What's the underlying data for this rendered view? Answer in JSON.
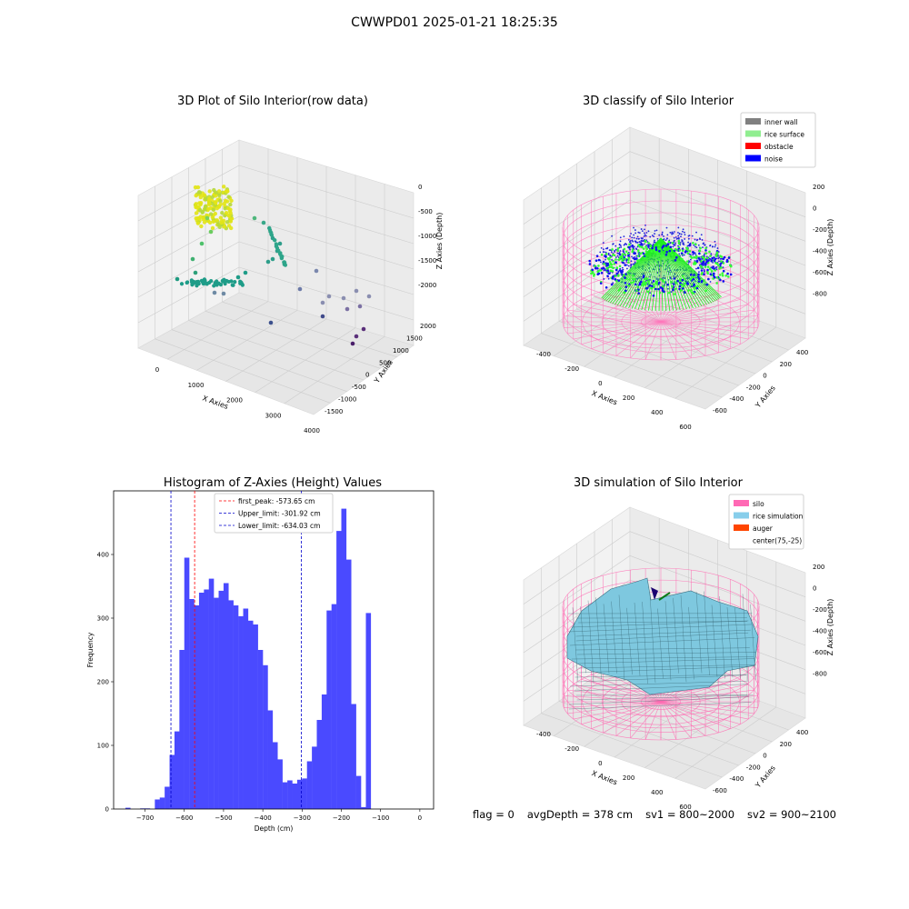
{
  "suptitle": "CWWPD01 2025-01-21 18:25:35",
  "panels": {
    "raw": {
      "title": "3D Plot of Silo Interior(row data)",
      "xlabel": "X Axies",
      "ylabel": "Y Axies",
      "zlabel": "Z Axies (Depth)",
      "xticks": [
        "0",
        "1000",
        "2000",
        "3000",
        "4000"
      ],
      "yticks": [
        "2000",
        "1500",
        "1000",
        "500",
        "0",
        "-500",
        "-1000",
        "-1500"
      ],
      "zticks": [
        "0",
        "-500",
        "-1000",
        "-1500",
        "-2000"
      ]
    },
    "classify": {
      "title": "3D classify of Silo Interior",
      "xlabel": "X Axies",
      "ylabel": "Y Axies",
      "zlabel": "Z Axies (Depth)",
      "xticks": [
        "-400",
        "-200",
        "0",
        "200",
        "400",
        "600"
      ],
      "yticks": [
        "400",
        "200",
        "0",
        "-200",
        "-400",
        "-600"
      ],
      "zticks": [
        "200",
        "0",
        "-200",
        "-400",
        "-600",
        "-800"
      ],
      "legend": [
        {
          "label": "inner wall",
          "color": "#808080"
        },
        {
          "label": "rice surface",
          "color": "#90ee90"
        },
        {
          "label": "obstacle",
          "color": "#ff0000"
        },
        {
          "label": "noise",
          "color": "#0000ff"
        }
      ]
    },
    "simulation": {
      "title": "3D simulation of Silo Interior",
      "xlabel": "X Axies",
      "ylabel": "Y Axies",
      "zlabel": "Z Axies (Depth)",
      "xticks": [
        "-400",
        "-200",
        "0",
        "200",
        "400",
        "600"
      ],
      "yticks": [
        "400",
        "200",
        "0",
        "-200",
        "-400",
        "-600"
      ],
      "zticks": [
        "200",
        "0",
        "-200",
        "-400",
        "-600",
        "-800"
      ],
      "legend": [
        {
          "label": "silo",
          "color": "#ff69b4"
        },
        {
          "label": "rice simulation",
          "color": "#87ceeb"
        },
        {
          "label": "auger",
          "color": "#ff4500"
        },
        {
          "label": "center(75,-25)",
          "color": ""
        }
      ]
    }
  },
  "status": {
    "flag": "flag = 0",
    "avg_depth": "avgDepth = 378 cm",
    "sv1": "sv1 = 800~2000",
    "sv2": "sv2 = 900~2100"
  },
  "chart_data": [
    {
      "type": "scatter",
      "title": "3D Plot of Silo Interior(row data)",
      "xlabel": "X Axies",
      "ylabel": "Y Axies",
      "zlabel": "Z Axies (Depth)",
      "xlim": [
        -500,
        4000
      ],
      "ylim": [
        -1500,
        2000
      ],
      "zlim": [
        -2300,
        0
      ]
    },
    {
      "type": "scatter",
      "title": "3D classify of Silo Interior",
      "xlabel": "X Axies",
      "ylabel": "Y Axies",
      "zlabel": "Z Axies (Depth)",
      "series": [
        {
          "name": "inner wall"
        },
        {
          "name": "rice surface"
        },
        {
          "name": "obstacle"
        },
        {
          "name": "noise"
        }
      ]
    },
    {
      "type": "bar",
      "title": "Histogram of Z-Axies (Height) Values",
      "xlabel": "Depth (cm)",
      "ylabel": "Frequency",
      "bin_width": 12.5,
      "xlim": [
        -780,
        35
      ],
      "ylim": [
        0,
        500
      ],
      "xticks": [
        -700,
        -600,
        -500,
        -400,
        -300,
        -200,
        -100,
        0
      ],
      "yticks": [
        0,
        100,
        200,
        300,
        400
      ],
      "bins": [
        {
          "x": -750,
          "y": 2
        },
        {
          "x": -712.5,
          "y": 1
        },
        {
          "x": -700,
          "y": 1
        },
        {
          "x": -675,
          "y": 15
        },
        {
          "x": -662.5,
          "y": 18
        },
        {
          "x": -650,
          "y": 35
        },
        {
          "x": -637.5,
          "y": 85
        },
        {
          "x": -625,
          "y": 122
        },
        {
          "x": -612.5,
          "y": 250
        },
        {
          "x": -600,
          "y": 395
        },
        {
          "x": -587.5,
          "y": 330
        },
        {
          "x": -575,
          "y": 320
        },
        {
          "x": -562.5,
          "y": 340
        },
        {
          "x": -550,
          "y": 345
        },
        {
          "x": -537.5,
          "y": 362
        },
        {
          "x": -525,
          "y": 332
        },
        {
          "x": -512.5,
          "y": 343
        },
        {
          "x": -500,
          "y": 355
        },
        {
          "x": -487.5,
          "y": 328
        },
        {
          "x": -475,
          "y": 320
        },
        {
          "x": -462.5,
          "y": 303
        },
        {
          "x": -450,
          "y": 315
        },
        {
          "x": -437.5,
          "y": 296
        },
        {
          "x": -425,
          "y": 290
        },
        {
          "x": -412.5,
          "y": 250
        },
        {
          "x": -400,
          "y": 226
        },
        {
          "x": -387.5,
          "y": 155
        },
        {
          "x": -375,
          "y": 105
        },
        {
          "x": -362.5,
          "y": 78
        },
        {
          "x": -350,
          "y": 42
        },
        {
          "x": -337.5,
          "y": 45
        },
        {
          "x": -325,
          "y": 40
        },
        {
          "x": -312.5,
          "y": 46
        },
        {
          "x": -300,
          "y": 48
        },
        {
          "x": -287.5,
          "y": 75
        },
        {
          "x": -275,
          "y": 98
        },
        {
          "x": -262.5,
          "y": 140
        },
        {
          "x": -250,
          "y": 180
        },
        {
          "x": -237.5,
          "y": 312
        },
        {
          "x": -225,
          "y": 322
        },
        {
          "x": -212.5,
          "y": 437
        },
        {
          "x": -200,
          "y": 472
        },
        {
          "x": -187.5,
          "y": 392
        },
        {
          "x": -175,
          "y": 165
        },
        {
          "x": -162.5,
          "y": 52
        },
        {
          "x": -150,
          "y": 3
        },
        {
          "x": -137.5,
          "y": 308
        }
      ],
      "reference_lines": [
        {
          "name": "first_peak: -573.65 cm",
          "x": -573.65,
          "color": "#ff0000"
        },
        {
          "name": "Upper_limit: -301.92 cm",
          "x": -301.92,
          "color": "#0000cc"
        },
        {
          "name": "Lower_limit: -634.03 cm",
          "x": -634.03,
          "color": "#0000cc"
        }
      ],
      "bar_color": "#4a4aff"
    },
    {
      "type": "area",
      "title": "3D simulation of Silo Interior",
      "xlabel": "X Axies",
      "ylabel": "Y Axies",
      "zlabel": "Z Axies (Depth)",
      "series": [
        {
          "name": "silo"
        },
        {
          "name": "rice simulation"
        },
        {
          "name": "auger"
        },
        {
          "name": "center(75,-25)"
        }
      ]
    }
  ]
}
